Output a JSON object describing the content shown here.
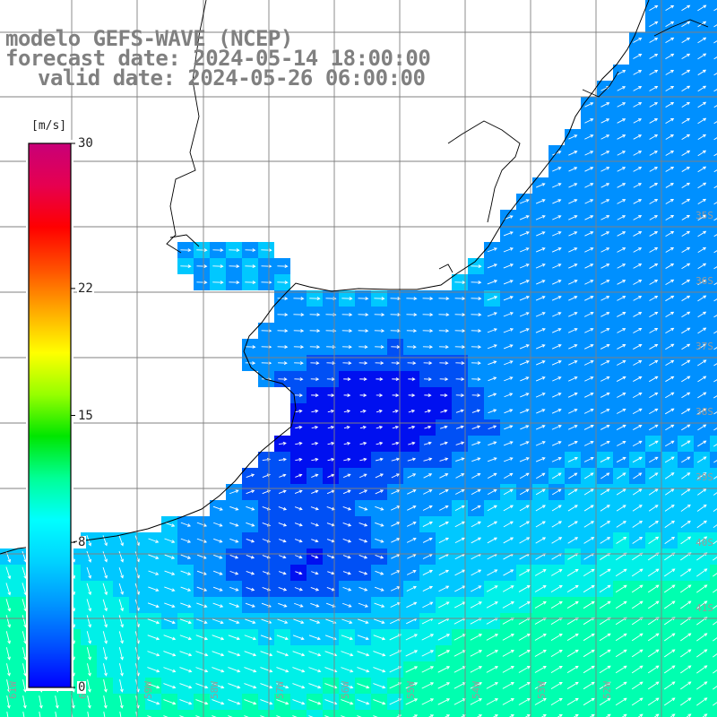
{
  "title": {
    "line1": "modelo GEFS-WAVE (NCEP)",
    "line2": "forecast date: 2024-05-14 18:00:00",
    "line3": "valid date: 2024-05-26 06:00:00"
  },
  "colorbar": {
    "unit": "[m/s]",
    "ticks": [
      {
        "label": "30",
        "value": 30
      },
      {
        "label": "22",
        "value": 22
      },
      {
        "label": "15",
        "value": 15
      },
      {
        "label": "8",
        "value": 8
      },
      {
        "label": "0",
        "value": 0
      }
    ],
    "colors": [
      "#0000ff",
      "#0050ff",
      "#0096ff",
      "#00d2ff",
      "#00ffff",
      "#00ff96",
      "#00e600",
      "#96ff00",
      "#ffff00",
      "#ffaa00",
      "#ff5000",
      "#ff0000",
      "#e60050",
      "#c80078"
    ]
  },
  "map": {
    "lat_labels": [
      "35S",
      "36S",
      "37S",
      "38S",
      "39S",
      "40S",
      "41S"
    ],
    "lon_labels": [
      "61W",
      "60W",
      "59W",
      "58W",
      "57W",
      "56W",
      "55W",
      "54W",
      "53W",
      "52W"
    ],
    "field_colors": {
      "very_low": "#0010f0",
      "low": "#0050f5",
      "mid": "#0090ff",
      "high": "#00c8ff",
      "very_high": "#00f0e8",
      "peak": "#00ffb0"
    },
    "land_color": "#ffffff",
    "coast_color": "#000000",
    "grid_color": "#808080",
    "arrow_color": "#ffffff"
  }
}
